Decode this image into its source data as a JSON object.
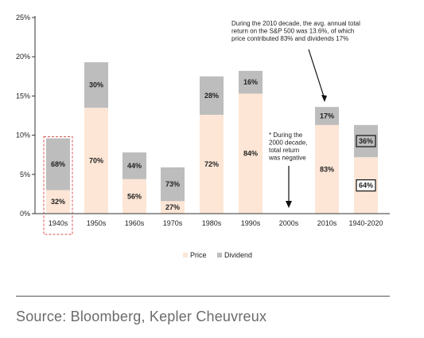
{
  "chart_data": {
    "type": "bar",
    "stacked": true,
    "categories": [
      "1940s",
      "1950s",
      "1960s",
      "1970s",
      "1980s",
      "1990s",
      "2000s",
      "2010s",
      "1940-2020"
    ],
    "series": [
      {
        "name": "Price",
        "color": "#fde6d6",
        "values": [
          3.0,
          13.5,
          4.4,
          1.6,
          12.6,
          15.3,
          0,
          11.3,
          7.2
        ]
      },
      {
        "name": "Dividend",
        "color": "#bdbdbd",
        "values": [
          6.6,
          5.8,
          3.4,
          4.3,
          4.9,
          2.9,
          0,
          2.3,
          4.1
        ]
      }
    ],
    "bar_labels": {
      "Price": [
        "32%",
        "70%",
        "56%",
        "27%",
        "72%",
        "84%",
        "",
        "83%",
        "64%"
      ],
      "Dividend": [
        "68%",
        "30%",
        "44%",
        "73%",
        "28%",
        "16%",
        "",
        "17%",
        "36%"
      ]
    },
    "yticks": [
      "0%",
      "5%",
      "10%",
      "15%",
      "20%",
      "25%"
    ],
    "ylim": [
      0,
      25
    ],
    "legend": [
      "Price",
      "Dividend"
    ],
    "legend_position": "bottom-center",
    "highlighted_category": "1940s",
    "boxed_labels_category": "1940-2020",
    "annotations": [
      {
        "text": "During the 2010 decade, the avg. annual total return on the S&P 500 was 13.6%, of which price contributed 83% and dividends 17%",
        "target": "2010s"
      },
      {
        "text": "* During the 2000 decade, total return was negative",
        "target": "2000s"
      }
    ]
  },
  "annotation_lines": {
    "a2010": [
      "During the 2010 decade, the avg. annual total",
      "return on the S&P 500 was 13.6%, of which",
      "price contributed 83% and dividends 17%"
    ],
    "a2000": [
      "* During the",
      "2000 decade,",
      "total return",
      "was negative"
    ]
  },
  "source": "Source: Bloomberg, Kepler Cheuvreux"
}
